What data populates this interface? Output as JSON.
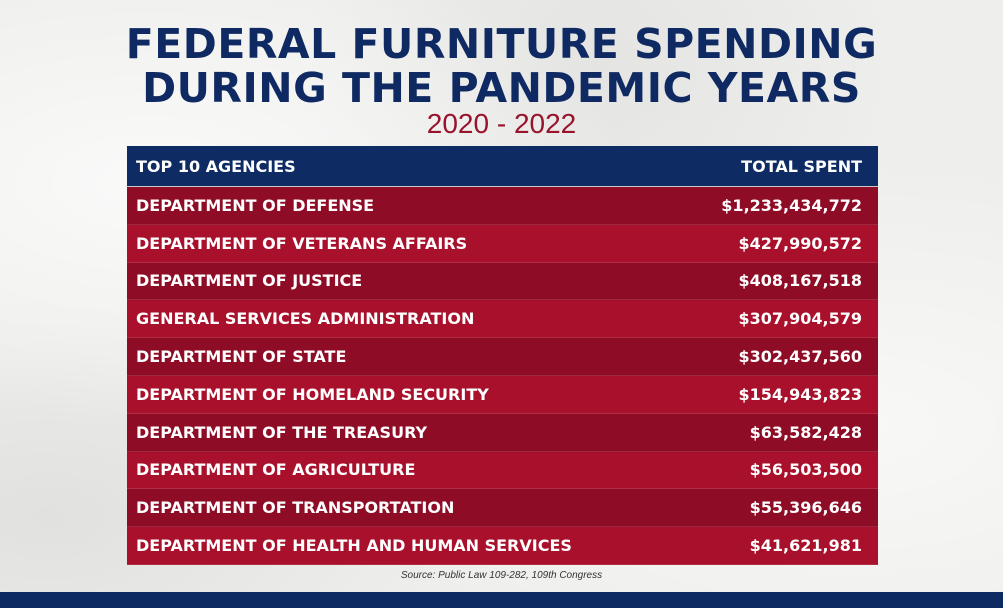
{
  "title_line1": "FEDERAL FURNITURE SPENDING",
  "title_line2": "DURING THE PANDEMIC YEARS",
  "subtitle": "2020 - 2022",
  "source": "Source: Public Law 109-282, 109th Congress",
  "colors": {
    "navy": "#0e2b63",
    "red_dark": "#8e0c25",
    "red_light": "#a8102b",
    "subtitle_red": "#98142c"
  },
  "chart_data": {
    "type": "table",
    "columns": [
      "TOP 10 AGENCIES",
      "TOTAL SPENT"
    ],
    "rows": [
      {
        "agency": "DEPARTMENT OF DEFENSE",
        "total": "$1,233,434,772"
      },
      {
        "agency": "DEPARTMENT OF VETERANS AFFAIRS",
        "total": "$427,990,572"
      },
      {
        "agency": "DEPARTMENT OF JUSTICE",
        "total": "$408,167,518"
      },
      {
        "agency": "GENERAL SERVICES ADMINISTRATION",
        "total": "$307,904,579"
      },
      {
        "agency": "DEPARTMENT OF STATE",
        "total": "$302,437,560"
      },
      {
        "agency": "DEPARTMENT OF HOMELAND SECURITY",
        "total": "$154,943,823"
      },
      {
        "agency": "DEPARTMENT OF THE TREASURY",
        "total": "$63,582,428"
      },
      {
        "agency": "DEPARTMENT OF AGRICULTURE",
        "total": "$56,503,500"
      },
      {
        "agency": "DEPARTMENT OF TRANSPORTATION",
        "total": "$55,396,646"
      },
      {
        "agency": "DEPARTMENT OF HEALTH AND HUMAN SERVICES",
        "total": "$41,621,981"
      }
    ]
  }
}
